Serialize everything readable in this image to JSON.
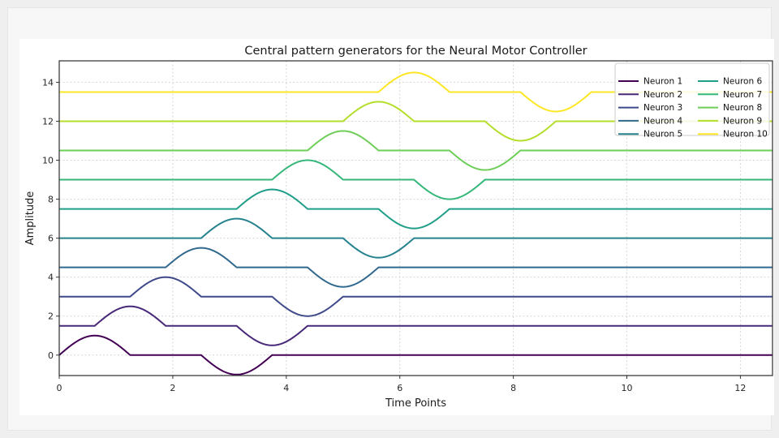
{
  "window": {
    "background": "#efefef",
    "panel_background": "#f7f7f7",
    "figure_background": "#ffffff",
    "spine_color": "#3c3c3c",
    "grid_color": "#d6d6d6",
    "legend_border_color": "#cccccc"
  },
  "chart_data": {
    "type": "line",
    "title": "Central pattern generators for the Neural Motor Controller",
    "xlabel": "Time Points",
    "ylabel": "Amplitude",
    "xlim": [
      0,
      12.566
    ],
    "ylim": [
      -1.05,
      15.1
    ],
    "x_ticks": [
      0,
      2,
      4,
      6,
      8,
      10,
      12
    ],
    "y_ticks": [
      0,
      2,
      4,
      6,
      8,
      10,
      12,
      14
    ],
    "grid": true,
    "legend": {
      "position": "upper right",
      "columns": 2,
      "order": "column-major"
    },
    "waveform": {
      "shape": "half-sine lobe up, flat gap, half-sine lobe down, flat baseline elsewhere",
      "amplitude": 1.0,
      "lobe_width": 1.25,
      "gap_between_lobes": 1.25,
      "phase_step": 0.625,
      "vertical_spacing": 1.5
    },
    "series": [
      {
        "name": "Neuron 1",
        "color": "#440154",
        "offset": 0.0,
        "burst_start": 0.0,
        "pos_lobe": [
          0.0,
          1.25
        ],
        "neg_lobe": [
          2.5,
          3.75
        ],
        "peak": {
          "x": 0.625,
          "y": 1.0
        },
        "trough": {
          "x": 3.125,
          "y": -1.0
        }
      },
      {
        "name": "Neuron 2",
        "color": "#482878",
        "offset": 1.5,
        "burst_start": 0.625,
        "pos_lobe": [
          0.625,
          1.875
        ],
        "neg_lobe": [
          3.125,
          4.375
        ],
        "peak": {
          "x": 1.25,
          "y": 2.5
        },
        "trough": {
          "x": 3.75,
          "y": 0.5
        }
      },
      {
        "name": "Neuron 3",
        "color": "#3e4989",
        "offset": 3.0,
        "burst_start": 1.25,
        "pos_lobe": [
          1.25,
          2.5
        ],
        "neg_lobe": [
          3.75,
          5.0
        ],
        "peak": {
          "x": 1.875,
          "y": 4.0
        },
        "trough": {
          "x": 4.375,
          "y": 2.0
        }
      },
      {
        "name": "Neuron 4",
        "color": "#31688e",
        "offset": 4.5,
        "burst_start": 1.875,
        "pos_lobe": [
          1.875,
          3.125
        ],
        "neg_lobe": [
          4.375,
          5.625
        ],
        "peak": {
          "x": 2.5,
          "y": 5.5
        },
        "trough": {
          "x": 5.0,
          "y": 3.5
        }
      },
      {
        "name": "Neuron 5",
        "color": "#26828e",
        "offset": 6.0,
        "burst_start": 2.5,
        "pos_lobe": [
          2.5,
          3.75
        ],
        "neg_lobe": [
          5.0,
          6.25
        ],
        "peak": {
          "x": 3.125,
          "y": 7.0
        },
        "trough": {
          "x": 5.625,
          "y": 5.0
        }
      },
      {
        "name": "Neuron 6",
        "color": "#1f9e89",
        "offset": 7.5,
        "burst_start": 3.125,
        "pos_lobe": [
          3.125,
          4.375
        ],
        "neg_lobe": [
          5.625,
          6.875
        ],
        "peak": {
          "x": 3.75,
          "y": 8.5
        },
        "trough": {
          "x": 6.25,
          "y": 6.5
        }
      },
      {
        "name": "Neuron 7",
        "color": "#35b779",
        "offset": 9.0,
        "burst_start": 3.75,
        "pos_lobe": [
          3.75,
          5.0
        ],
        "neg_lobe": [
          6.25,
          7.5
        ],
        "peak": {
          "x": 4.375,
          "y": 10.0
        },
        "trough": {
          "x": 6.875,
          "y": 8.0
        }
      },
      {
        "name": "Neuron 8",
        "color": "#6ece58",
        "offset": 10.5,
        "burst_start": 4.375,
        "pos_lobe": [
          4.375,
          5.625
        ],
        "neg_lobe": [
          6.875,
          8.125
        ],
        "peak": {
          "x": 5.0,
          "y": 11.5
        },
        "trough": {
          "x": 7.5,
          "y": 9.5
        }
      },
      {
        "name": "Neuron 9",
        "color": "#b5de2b",
        "offset": 12.0,
        "burst_start": 5.0,
        "pos_lobe": [
          5.0,
          6.25
        ],
        "neg_lobe": [
          7.5,
          8.75
        ],
        "peak": {
          "x": 5.625,
          "y": 13.0
        },
        "trough": {
          "x": 8.125,
          "y": 11.0
        }
      },
      {
        "name": "Neuron 10",
        "color": "#fde725",
        "offset": 13.5,
        "burst_start": 5.625,
        "pos_lobe": [
          5.625,
          6.875
        ],
        "neg_lobe": [
          8.125,
          9.375
        ],
        "peak": {
          "x": 6.25,
          "y": 14.5
        },
        "trough": {
          "x": 8.75,
          "y": 12.5
        }
      }
    ]
  }
}
